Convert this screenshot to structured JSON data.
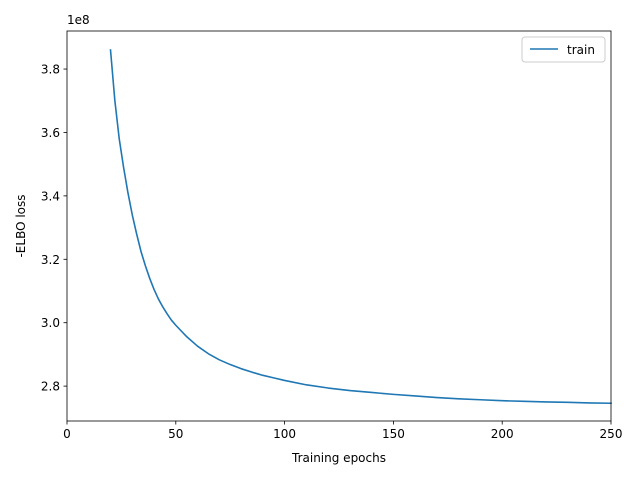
{
  "chart_data": {
    "type": "line",
    "title": "",
    "xlabel": "Training epochs",
    "ylabel": "-ELBO loss",
    "y_offset_label": "1e8",
    "y_scale_factor": 100000000,
    "xlim": [
      0,
      250
    ],
    "ylim": [
      269000000,
      392000000
    ],
    "x_ticks": [
      0,
      50,
      100,
      150,
      200,
      250
    ],
    "x_tick_labels": [
      "0",
      "50",
      "100",
      "150",
      "200",
      "250"
    ],
    "y_ticks": [
      280000000,
      300000000,
      320000000,
      340000000,
      360000000,
      380000000
    ],
    "y_tick_labels": [
      "2.8",
      "3.0",
      "3.2",
      "3.4",
      "3.6",
      "3.8"
    ],
    "grid": false,
    "legend_position": "upper right",
    "series": [
      {
        "name": "train",
        "color": "#1f77b4",
        "x": [
          20,
          22,
          24,
          26,
          28,
          30,
          32,
          34,
          36,
          38,
          40,
          42,
          44,
          46,
          48,
          50,
          55,
          60,
          65,
          70,
          75,
          80,
          85,
          90,
          95,
          100,
          110,
          120,
          130,
          140,
          150,
          160,
          170,
          180,
          190,
          200,
          210,
          220,
          230,
          240,
          250
        ],
        "y": [
          386000000,
          370000000,
          358000000,
          349000000,
          341000000,
          334000000,
          328000000,
          322500000,
          318000000,
          314000000,
          310500000,
          307500000,
          305000000,
          302800000,
          300800000,
          299200000,
          295600000,
          292600000,
          290200000,
          288300000,
          286800000,
          285500000,
          284400000,
          283400000,
          282600000,
          281800000,
          280400000,
          279400000,
          278600000,
          278000000,
          277400000,
          276900000,
          276400000,
          276000000,
          275700000,
          275400000,
          275200000,
          275000000,
          274900000,
          274700000,
          274600000
        ]
      }
    ]
  }
}
